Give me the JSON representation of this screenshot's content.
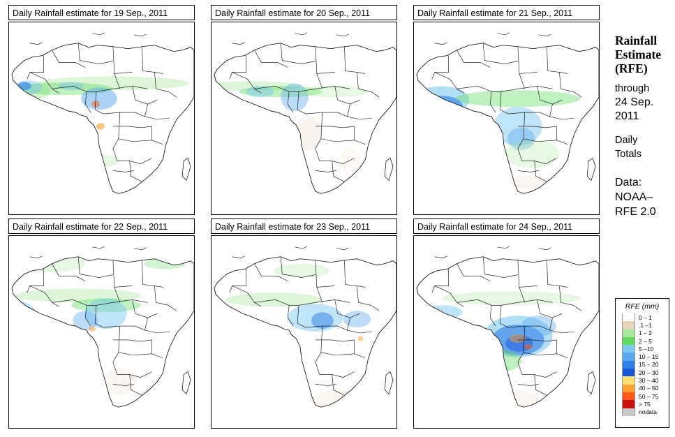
{
  "panels": [
    {
      "title": "Daily Rainfall estimate for  19 Sep., 2011",
      "pattern": "sahel-west"
    },
    {
      "title": "Daily Rainfall estimate for  20 Sep., 2011",
      "pattern": "sahel-light"
    },
    {
      "title": "Daily Rainfall estimate for  21 Sep., 2011",
      "pattern": "west-coast-heavy"
    },
    {
      "title": "Daily Rainfall estimate for  22 Sep., 2011",
      "pattern": "west-central"
    },
    {
      "title": "Daily Rainfall estimate for  23 Sep., 2011",
      "pattern": "central-east"
    },
    {
      "title": "Daily Rainfall estimate for  24 Sep., 2011",
      "pattern": "congo-heavy"
    }
  ],
  "sidebar": {
    "title_line1": "Rainfall",
    "title_line2": "Estimate",
    "title_line3": "(RFE)",
    "through": "through",
    "date_line1": "24 Sep.",
    "date_line2": "2011",
    "totals_line1": "Daily",
    "totals_line2": "Totals",
    "data_line1": "Data:",
    "data_line2": "NOAA–",
    "data_line3": "RFE 2.0"
  },
  "legend": {
    "title": "RFE (mm)",
    "items": [
      {
        "label": "0 – 1",
        "color": "#ffffff"
      },
      {
        "label": ".1 –1",
        "color": "#e8d5be"
      },
      {
        "label": "1 – 2",
        "color": "#a8e89a"
      },
      {
        "label": "2 – 5",
        "color": "#5fd95f"
      },
      {
        "label": "5 –10",
        "color": "#7fc8f0"
      },
      {
        "label": "10 – 15",
        "color": "#5aa8ee"
      },
      {
        "label": "15 – 20",
        "color": "#2f7fe6"
      },
      {
        "label": "20 – 30",
        "color": "#1a55d6"
      },
      {
        "label": "30 – 40",
        "color": "#ffe070"
      },
      {
        "label": "40 – 50",
        "color": "#ffa030"
      },
      {
        "label": "50 – 75",
        "color": "#ff5a1a"
      },
      {
        "label": "> 75",
        "color": "#cc1010"
      },
      {
        "label": "nodata",
        "color": "#c8c8c8"
      }
    ]
  }
}
